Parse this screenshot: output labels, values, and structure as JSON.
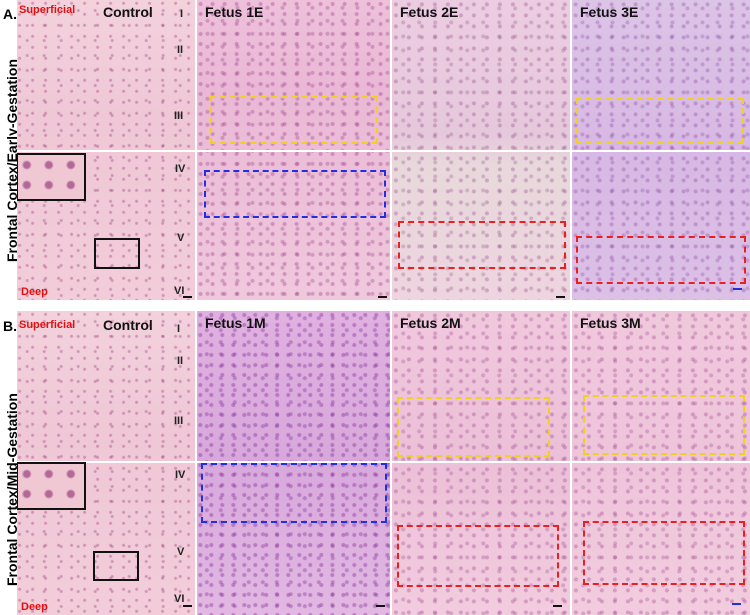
{
  "figure": {
    "panel_a": {
      "label": "A.",
      "side_label": "Frontal Cortex/Early-Gestation",
      "control": {
        "title": "Control",
        "superficial": "Superficial",
        "deep": "Deep",
        "layers": [
          "I",
          "II",
          "III",
          "IV",
          "V",
          "VI"
        ]
      },
      "fetuses": [
        "Fetus 1E",
        "Fetus 2E",
        "Fetus 3E"
      ]
    },
    "panel_b": {
      "label": "B.",
      "side_label": "Frontal Cortex/Mid-Gestation",
      "control": {
        "title": "Control",
        "superficial": "Superficial",
        "deep": "Deep",
        "layers": [
          "I",
          "II",
          "III",
          "IV",
          "V",
          "VI"
        ]
      },
      "fetuses": [
        "Fetus 1M",
        "Fetus 2M",
        "Fetus 3M"
      ]
    }
  },
  "colors": {
    "tissue_pink": "#f0c8d8",
    "tissue_purple": "#d8b8e4",
    "tissue_grey": "#e8d8dc",
    "yellow_box": "#f0d020",
    "blue_box": "#2030e0",
    "red_box": "#e82020",
    "label_red": "#e01010"
  }
}
